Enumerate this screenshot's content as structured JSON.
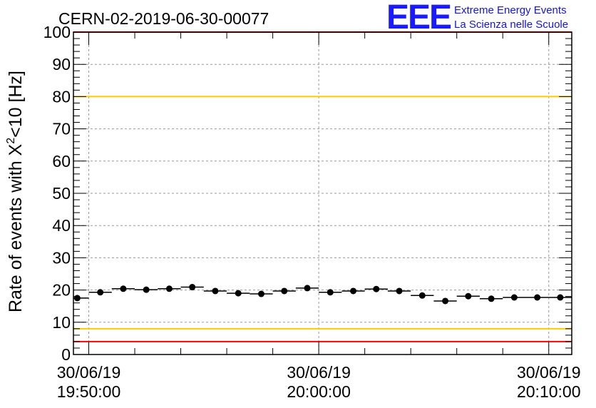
{
  "header": {
    "run_title": "CERN-02-2019-06-30-00077",
    "logo_text": "EEE",
    "logo_line1": "Extreme Energy Events",
    "logo_line2": "La Scienza nelle Scuole"
  },
  "colors": {
    "red_limit": "#ff0000",
    "yellow_limit": "#ffcc00",
    "logo_blue": "#1a1aff",
    "marker": "#000000"
  },
  "chart_data": {
    "type": "scatter",
    "title": "CERN-02-2019-06-30-00077",
    "ylabel_main": "Rate of events with X",
    "ylabel_sup": "2",
    "ylabel_tail": "<10 [Hz]",
    "xlabel": "",
    "xlim": [
      "19:49:20",
      "20:11:00"
    ],
    "ylim": [
      0,
      100
    ],
    "y_ticks": [
      0,
      10,
      20,
      30,
      40,
      50,
      60,
      70,
      80,
      90,
      100
    ],
    "x_ticks": [
      {
        "date": "30/06/19",
        "time": "19:50:00",
        "t": "19:50:00"
      },
      {
        "date": "30/06/19",
        "time": "20:00:00",
        "t": "20:00:00"
      },
      {
        "date": "30/06/19",
        "time": "20:10:00",
        "t": "20:10:00"
      }
    ],
    "grid": true,
    "horizontal_lines": [
      {
        "y": 100,
        "color": "#ff0000"
      },
      {
        "y": 80,
        "color": "#ffcc00"
      },
      {
        "y": 8,
        "color": "#ffcc00"
      },
      {
        "y": 4,
        "color": "#ff0000"
      }
    ],
    "series": [
      {
        "x": [
          "19:49:30",
          "19:50:30",
          "19:51:30",
          "19:52:30",
          "19:53:30",
          "19:54:30",
          "19:55:30",
          "19:56:30",
          "19:57:30",
          "19:58:30",
          "19:59:30",
          "20:00:30",
          "20:01:30",
          "20:02:30",
          "20:03:30",
          "20:04:30",
          "20:05:30",
          "20:06:30",
          "20:07:30",
          "20:08:30",
          "20:09:30",
          "20:10:30"
        ],
        "y": [
          17.5,
          19.3,
          20.4,
          20.1,
          20.4,
          20.9,
          19.7,
          19.0,
          18.8,
          19.7,
          20.6,
          19.3,
          19.7,
          20.3,
          19.7,
          18.3,
          16.6,
          18.1,
          17.3,
          17.7,
          17.7,
          17.7
        ]
      }
    ]
  }
}
